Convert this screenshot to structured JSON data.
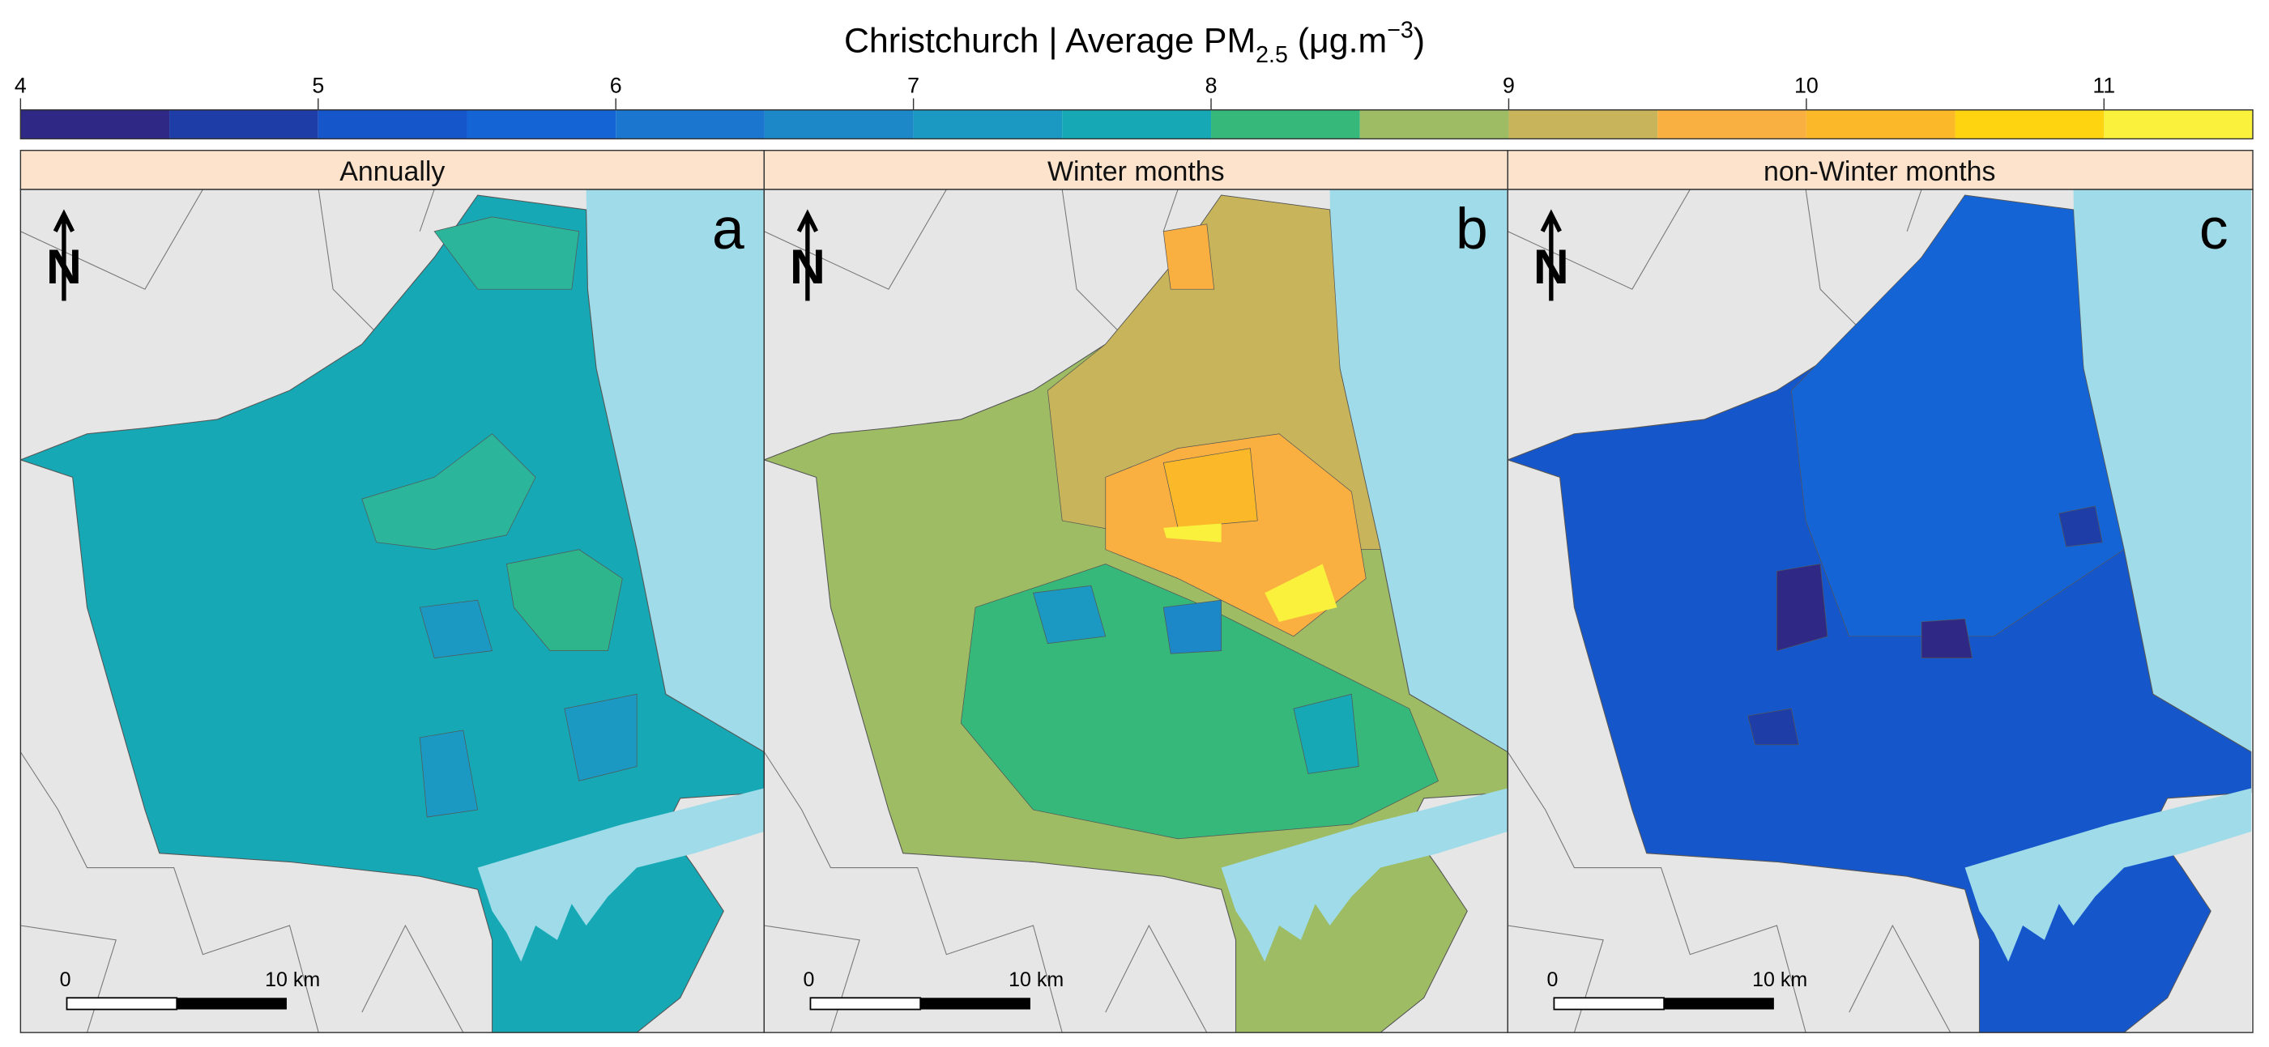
{
  "title": {
    "text": "Christchurch | Average PM",
    "subscript": "2.5",
    "unit_open": " (μg.m",
    "superscript": "−3",
    "unit_close": ")"
  },
  "colorbar": {
    "xlim": [
      4,
      11.5
    ],
    "ticks": [
      4,
      5,
      6,
      7,
      8,
      9,
      10,
      11
    ],
    "bins": [
      4,
      4.5,
      5,
      5.5,
      6,
      6.5,
      7,
      7.5,
      8,
      8.5,
      9,
      9.5,
      10,
      10.5,
      11,
      11.5
    ],
    "colors": [
      "#2f2884",
      "#1e3da6",
      "#1556cb",
      "#1464d6",
      "#1a76cf",
      "#1c88c8",
      "#1b99c3",
      "#16a9b5",
      "#35b87a",
      "#9dbc63",
      "#c8b45a",
      "#fab041",
      "#fbb829",
      "#fdd40f",
      "#f9f13c"
    ]
  },
  "panels": [
    {
      "title": "Annually",
      "letter": "a"
    },
    {
      "title": "Winter months",
      "letter": "b"
    },
    {
      "title": "non-Winter months",
      "letter": "c"
    }
  ],
  "north_label": "N",
  "scale_bar": {
    "start": "0",
    "end": "10 km"
  }
}
